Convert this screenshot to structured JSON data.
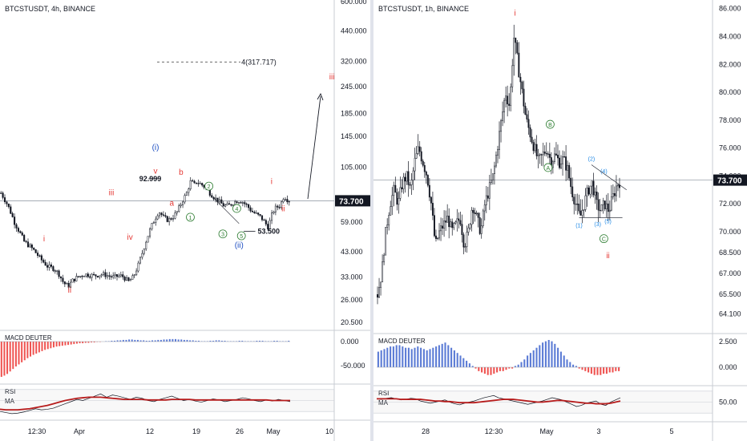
{
  "chart_data": [
    {
      "type": "candlestick",
      "symbol_label": "BTCSTUSDT, 4h, BINANCE",
      "last_price": "73.700",
      "scale": "log",
      "ylim": [
        20.5,
        600
      ],
      "y_ticks": [
        "600.000",
        "440.000",
        "320.000",
        "245.000",
        "185.000",
        "145.000",
        "105.000",
        "59.000",
        "43.000",
        "33.000",
        "26.000",
        "20.500"
      ],
      "x_ticks": [
        "12:30",
        "Apr",
        "12",
        "19",
        "26",
        "May",
        "10"
      ],
      "price_path": [
        [
          0,
          80
        ],
        [
          3,
          70
        ],
        [
          6,
          58
        ],
        [
          10,
          48
        ],
        [
          14,
          44
        ],
        [
          17,
          40
        ],
        [
          20,
          37
        ],
        [
          23,
          36
        ],
        [
          25,
          34
        ],
        [
          27,
          31
        ],
        [
          29,
          30
        ],
        [
          31,
          32
        ],
        [
          33,
          33
        ],
        [
          36,
          34
        ],
        [
          40,
          33.5
        ],
        [
          44,
          34
        ],
        [
          48,
          33
        ],
        [
          52,
          33.5
        ],
        [
          55,
          31.5
        ],
        [
          57,
          33
        ],
        [
          59,
          37
        ],
        [
          61,
          43
        ],
        [
          63,
          50
        ],
        [
          65,
          57
        ],
        [
          67,
          63
        ],
        [
          68,
          66
        ],
        [
          70,
          62
        ],
        [
          72,
          60
        ],
        [
          74,
          62
        ],
        [
          76,
          66
        ],
        [
          78,
          73
        ],
        [
          80,
          80
        ],
        [
          81,
          86
        ],
        [
          82,
          92
        ],
        [
          83,
          86
        ],
        [
          84,
          90
        ],
        [
          86,
          88
        ],
        [
          88,
          85
        ],
        [
          90,
          80
        ],
        [
          92,
          76
        ],
        [
          94,
          73
        ],
        [
          96,
          70
        ],
        [
          98,
          70
        ],
        [
          100,
          72
        ],
        [
          102,
          74
        ],
        [
          104,
          73
        ],
        [
          106,
          70
        ],
        [
          107,
          68
        ],
        [
          108,
          66
        ],
        [
          110,
          64
        ],
        [
          112,
          62
        ],
        [
          114,
          58
        ],
        [
          115,
          56
        ],
        [
          116,
          60
        ],
        [
          117,
          65
        ],
        [
          118,
          68
        ],
        [
          120,
          70
        ],
        [
          121,
          73
        ],
        [
          122,
          78
        ],
        [
          123,
          75
        ],
        [
          124,
          74
        ],
        [
          125,
          75
        ]
      ],
      "wave_labels": [
        {
          "text": "i",
          "x": 19,
          "y": 48,
          "color": "#e53935"
        },
        {
          "text": "ii",
          "x": 30,
          "y": 28,
          "color": "#e53935"
        },
        {
          "text": "iii",
          "x": 48,
          "y": 78,
          "color": "#e53935"
        },
        {
          "text": "iv",
          "x": 56,
          "y": 49,
          "color": "#e53935"
        },
        {
          "text": "v",
          "x": 67,
          "y": 98,
          "color": "#e53935"
        },
        {
          "text": "a",
          "x": 74,
          "y": 70,
          "color": "#e53935"
        },
        {
          "text": "b",
          "x": 78,
          "y": 97,
          "color": "#e53935"
        },
        {
          "text": "i",
          "x": 117,
          "y": 88,
          "color": "#e53935"
        },
        {
          "text": "ii",
          "x": 122,
          "y": 66,
          "color": "#e53935"
        },
        {
          "text": "iii",
          "x": 143,
          "y": 265,
          "color": "#e53935"
        },
        {
          "text": "(i)",
          "x": 67,
          "y": 126,
          "color": "#1e4fc2"
        },
        {
          "text": "(ii)",
          "x": 103,
          "y": 45,
          "color": "#1e4fc2"
        }
      ],
      "circle_labels": [
        {
          "text": "1",
          "x": 82,
          "y": 62
        },
        {
          "text": "2",
          "x": 90,
          "y": 86
        },
        {
          "text": "3",
          "x": 96,
          "y": 52
        },
        {
          "text": "4",
          "x": 102,
          "y": 68
        },
        {
          "text": "5",
          "x": 104,
          "y": 51
        }
      ],
      "annotations": [
        {
          "text": "92.999",
          "x": 60,
          "y": 92.999
        },
        {
          "text": "53.500",
          "x": 111,
          "y": 53.5
        },
        {
          "text": "4(317.717)",
          "x": 104,
          "y": 317.717
        }
      ],
      "macd_label": "MACD DEUTER",
      "macd_ticks": [
        "0.000",
        "-50.000"
      ],
      "macd_hist": [
        -85,
        -82,
        -78,
        -72,
        -66,
        -60,
        -55,
        -50,
        -45,
        -40,
        -36,
        -32,
        -29,
        -26,
        -23,
        -20,
        -18,
        -16,
        -14,
        -12,
        -11,
        -10,
        -9,
        -8,
        -7,
        -6,
        -5,
        -4,
        -4,
        -3,
        -3,
        -2,
        -2,
        -1,
        -1,
        0,
        1,
        1,
        2,
        2,
        3,
        3,
        4,
        4,
        5,
        5,
        4,
        4,
        3,
        3,
        2,
        2,
        3,
        3,
        4,
        4,
        5,
        5,
        6,
        6,
        6,
        5,
        5,
        4,
        4,
        3,
        3,
        2,
        2,
        1,
        1,
        1,
        2,
        2,
        3,
        3,
        2,
        2,
        1,
        1,
        1,
        1,
        2,
        2,
        1,
        1,
        1,
        1,
        2,
        2,
        2,
        1,
        1,
        1,
        2,
        2,
        1,
        1,
        1,
        2
      ],
      "rsi_label": "RSI",
      "ma_label": "MA",
      "rsi": [
        30,
        28,
        26,
        27,
        29,
        32,
        35,
        33,
        34,
        36,
        40,
        44,
        48,
        52,
        50,
        54,
        58,
        62,
        56,
        60,
        58,
        55,
        52,
        56,
        54,
        50,
        48,
        52,
        55,
        58,
        54,
        50,
        52,
        49,
        47,
        50,
        53,
        51,
        48,
        50,
        52,
        55,
        53,
        50,
        48,
        51,
        49,
        52,
        50,
        48
      ],
      "rsi_ma": [
        34,
        33,
        33,
        33,
        34,
        35,
        37,
        39,
        41,
        44,
        47,
        50,
        52,
        54,
        55,
        56,
        56,
        56,
        55,
        54,
        53,
        52,
        52,
        52,
        52,
        51,
        51,
        51,
        51,
        52,
        52,
        52,
        52,
        51,
        51,
        51,
        51,
        51,
        51,
        51,
        51,
        51,
        51,
        51,
        51,
        51,
        50,
        50,
        50,
        50
      ]
    },
    {
      "type": "candlestick",
      "symbol_label": "BTCSTUSDT, 1h, BINANCE",
      "last_price": "73.700",
      "scale": "linear",
      "ylim": [
        63.5,
        86.5
      ],
      "y_ticks": [
        "86.000",
        "84.000",
        "82.000",
        "80.000",
        "78.000",
        "76.000",
        "74.000",
        "72.000",
        "70.000",
        "68.500",
        "67.000",
        "65.500",
        "64.100"
      ],
      "x_ticks": [
        "28",
        "12:30",
        "May",
        "3",
        "5"
      ],
      "price_path": [
        [
          0,
          65.5
        ],
        [
          2,
          67
        ],
        [
          4,
          70
        ],
        [
          6,
          72
        ],
        [
          8,
          73
        ],
        [
          10,
          72
        ],
        [
          12,
          73.5
        ],
        [
          14,
          74
        ],
        [
          16,
          73
        ],
        [
          18,
          75
        ],
        [
          20,
          76
        ],
        [
          22,
          75
        ],
        [
          24,
          74
        ],
        [
          26,
          72
        ],
        [
          28,
          69
        ],
        [
          30,
          70
        ],
        [
          32,
          70.5
        ],
        [
          34,
          71
        ],
        [
          36,
          70
        ],
        [
          38,
          70.5
        ],
        [
          40,
          71
        ],
        [
          42,
          69
        ],
        [
          44,
          70
        ],
        [
          46,
          72
        ],
        [
          48,
          71
        ],
        [
          50,
          70
        ],
        [
          52,
          72
        ],
        [
          54,
          73
        ],
        [
          56,
          74
        ],
        [
          58,
          76
        ],
        [
          60,
          78
        ],
        [
          62,
          80
        ],
        [
          64,
          79
        ],
        [
          66,
          84
        ],
        [
          68,
          82
        ],
        [
          70,
          80
        ],
        [
          72,
          78
        ],
        [
          74,
          77
        ],
        [
          76,
          76
        ],
        [
          78,
          75
        ],
        [
          80,
          75.5
        ],
        [
          82,
          76
        ],
        [
          84,
          75
        ],
        [
          86,
          75.5
        ],
        [
          88,
          75
        ],
        [
          90,
          75.2
        ],
        [
          92,
          74.5
        ],
        [
          94,
          73
        ],
        [
          96,
          72
        ],
        [
          98,
          71
        ],
        [
          100,
          72
        ],
        [
          102,
          73
        ],
        [
          104,
          73.5
        ],
        [
          106,
          72
        ],
        [
          108,
          71.5
        ],
        [
          110,
          72
        ],
        [
          112,
          71.5
        ],
        [
          114,
          72.5
        ],
        [
          116,
          73.4
        ],
        [
          118,
          73.7
        ]
      ],
      "wave_labels": [
        {
          "text": "i",
          "x": 67,
          "y": 85.5,
          "color": "#e53935"
        },
        {
          "text": "ii",
          "x": 112,
          "y": 68.1,
          "color": "#e53935"
        }
      ],
      "circle_labels": [
        {
          "text": "B",
          "x": 84,
          "y": 77.7
        },
        {
          "text": "A",
          "x": 83,
          "y": 74.6
        },
        {
          "text": "C",
          "x": 110,
          "y": 69.5
        }
      ],
      "minor_labels": [
        {
          "text": "(1)",
          "x": 98,
          "y": 70.3
        },
        {
          "text": "(2)",
          "x": 104,
          "y": 75.1
        },
        {
          "text": "(3)",
          "x": 107,
          "y": 70.4
        },
        {
          "text": "(4)",
          "x": 110,
          "y": 74.2
        },
        {
          "text": "(5)",
          "x": 112,
          "y": 70.6
        }
      ],
      "macd_label": "MACD DEUTER",
      "macd_ticks": [
        "2.500",
        "0.000"
      ],
      "macd_hist": [
        1.2,
        1.3,
        1.4,
        1.5,
        1.6,
        1.6,
        1.7,
        1.7,
        1.6,
        1.5,
        1.5,
        1.4,
        1.5,
        1.6,
        1.5,
        1.4,
        1.3,
        1.4,
        1.5,
        1.6,
        1.7,
        1.8,
        1.9,
        1.7,
        1.5,
        1.3,
        1.1,
        0.9,
        0.7,
        0.5,
        0.3,
        0.1,
        -0.1,
        -0.3,
        -0.4,
        -0.5,
        -0.6,
        -0.6,
        -0.5,
        -0.4,
        -0.3,
        -0.3,
        -0.2,
        -0.1,
        -0.1,
        0.1,
        0.2,
        0.4,
        0.6,
        0.9,
        1.1,
        1.3,
        1.5,
        1.7,
        1.9,
        2.0,
        2.1,
        2.0,
        1.8,
        1.5,
        1.2,
        0.9,
        0.6,
        0.4,
        0.2,
        0.1,
        -0.1,
        -0.2,
        -0.3,
        -0.4,
        -0.5,
        -0.6,
        -0.6,
        -0.6,
        -0.5,
        -0.5,
        -0.4,
        -0.4,
        -0.3,
        -0.3
      ],
      "rsi_label": "RSI",
      "ma_label": "MA",
      "rsi_ticks": [
        "50.00"
      ],
      "rsi": [
        56,
        55,
        57,
        58,
        56,
        54,
        55,
        57,
        56,
        52,
        50,
        48,
        50,
        52,
        54,
        50,
        47,
        45,
        48,
        50,
        52,
        55,
        58,
        60,
        62,
        58,
        56,
        54,
        52,
        50,
        48,
        46,
        48,
        50,
        52,
        55,
        58,
        56,
        54,
        50,
        46,
        42,
        44,
        48,
        50,
        52,
        46,
        44,
        50,
        54,
        58
      ],
      "rsi_ma": [
        56,
        56,
        56,
        56,
        56,
        55,
        55,
        55,
        55,
        55,
        54,
        53,
        52,
        52,
        51,
        51,
        50,
        49,
        49,
        49,
        49,
        50,
        51,
        52,
        53,
        54,
        55,
        55,
        55,
        54,
        53,
        52,
        51,
        50,
        50,
        51,
        52,
        53,
        53,
        52,
        51,
        50,
        49,
        48,
        48,
        47,
        47,
        47,
        48,
        50,
        52
      ]
    }
  ]
}
